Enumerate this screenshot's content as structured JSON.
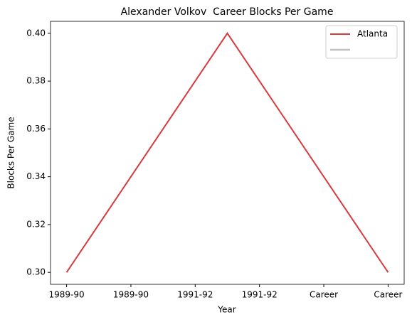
{
  "chart_data": {
    "type": "line",
    "title": "Alexander Volkov  Career Blocks Per Game",
    "xlabel": "Year",
    "ylabel": "Blocks Per Game",
    "x": [
      0,
      1,
      2
    ],
    "series": [
      {
        "name": "Atlanta",
        "color": "#d73a3f",
        "values": [
          0.3,
          0.4,
          0.3
        ]
      }
    ],
    "xlim": [
      -0.1,
      2.1
    ],
    "xticks": [
      {
        "value": 0,
        "label": "1989-90"
      },
      {
        "value": 0.4,
        "label": "1989-90"
      },
      {
        "value": 0.8,
        "label": "1991-92"
      },
      {
        "value": 1.2,
        "label": "1991-92"
      },
      {
        "value": 1.6,
        "label": "Career"
      },
      {
        "value": 2.0,
        "label": "Career"
      }
    ],
    "ylim": [
      0.295,
      0.405
    ],
    "yticks": [
      {
        "value": 0.3,
        "label": "0.30"
      },
      {
        "value": 0.32,
        "label": "0.32"
      },
      {
        "value": 0.34,
        "label": "0.34"
      },
      {
        "value": 0.36,
        "label": "0.36"
      },
      {
        "value": 0.38,
        "label": "0.38"
      },
      {
        "value": 0.4,
        "label": "0.40"
      }
    ],
    "legend": "upper right"
  }
}
